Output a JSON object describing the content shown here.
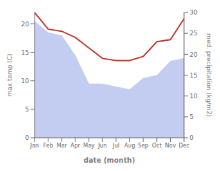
{
  "chart_data": {
    "type": "line",
    "xlabel": "date (month)",
    "ylabel": "max temp (C)",
    "y2label": "med. precipitation (kg/m2)",
    "categories": [
      "Jan",
      "Feb",
      "Mar",
      "Apr",
      "May",
      "Jun",
      "Jul",
      "Aug",
      "Sep",
      "Oct",
      "Nov",
      "Dec"
    ],
    "series": [
      {
        "type": "area",
        "color": "#b8c4ee",
        "values": [
          20.5,
          18.5,
          18.0,
          14.5,
          9.5,
          9.5,
          9.0,
          8.5,
          10.5,
          11.0,
          13.5,
          14.0
        ]
      },
      {
        "type": "line",
        "color": "#c0392b",
        "axis": "y2",
        "values": [
          30.0,
          26.0,
          25.5,
          24.0,
          21.5,
          19.0,
          18.5,
          18.5,
          19.5,
          23.0,
          23.5,
          28.5
        ]
      }
    ],
    "ylim": [
      0,
      22
    ],
    "yticks": [
      0,
      5,
      10,
      15,
      20
    ],
    "y2lim": [
      0,
      30
    ],
    "y2ticks": [
      0,
      5,
      10,
      15,
      20,
      25,
      30
    ]
  }
}
